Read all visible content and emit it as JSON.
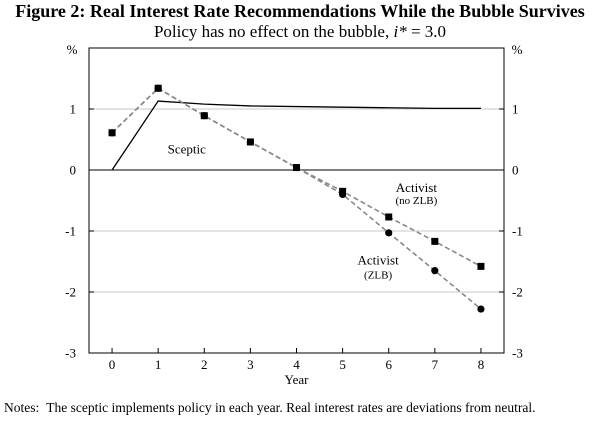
{
  "title": "Figure 2: Real Interest Rate Recommendations While the Bubble Survives",
  "subtitle_prefix": "Policy has no effect on the bubble, ",
  "subtitle_var": "i*",
  "subtitle_suffix": " = 3.0",
  "notes_label": "Notes:",
  "notes_text": "The sceptic implements policy in each year. Real interest rates are deviations from neutral.",
  "chart_data": {
    "type": "line",
    "title": "Figure 2: Real Interest Rate Recommendations While the Bubble Survives",
    "subtitle": "Policy has no effect on the bubble, i* = 3.0",
    "xlabel": "Year",
    "ylabel_left": "%",
    "ylabel_right": "%",
    "xlim": [
      -0.5,
      8.5
    ],
    "ylim": [
      -3,
      2
    ],
    "x_ticks": [
      0,
      1,
      2,
      3,
      4,
      5,
      6,
      7,
      8
    ],
    "y_ticks": [
      -3,
      -2,
      -1,
      0,
      1
    ],
    "grid": "horizontal",
    "series": [
      {
        "name": "Sceptic",
        "style": "solid",
        "marker": "none",
        "color": "#000000",
        "x": [
          0,
          1,
          2,
          3,
          4,
          5,
          6,
          7,
          8
        ],
        "values": [
          0,
          1.13,
          1.08,
          1.05,
          1.04,
          1.03,
          1.02,
          1.01,
          1.01
        ]
      },
      {
        "name": "Activist (no ZLB)",
        "label_lines": [
          "Activist",
          "(no ZLB)"
        ],
        "style": "dashed",
        "marker": "square",
        "color": "#888888",
        "x": [
          0,
          1,
          2,
          3,
          4,
          5,
          6,
          7,
          8
        ],
        "values": [
          0.61,
          1.34,
          0.89,
          0.46,
          0.04,
          -0.35,
          -0.77,
          -1.17,
          -1.58
        ]
      },
      {
        "name": "Activist (ZLB)",
        "label_lines": [
          "Activist",
          "(ZLB)"
        ],
        "style": "dashed",
        "marker": "circle",
        "color": "#888888",
        "x": [
          0,
          1,
          2,
          3,
          4,
          5,
          6,
          7,
          8
        ],
        "values": [
          0.61,
          1.34,
          0.89,
          0.46,
          0.04,
          -0.4,
          -1.03,
          -1.65,
          -2.28
        ]
      }
    ]
  }
}
